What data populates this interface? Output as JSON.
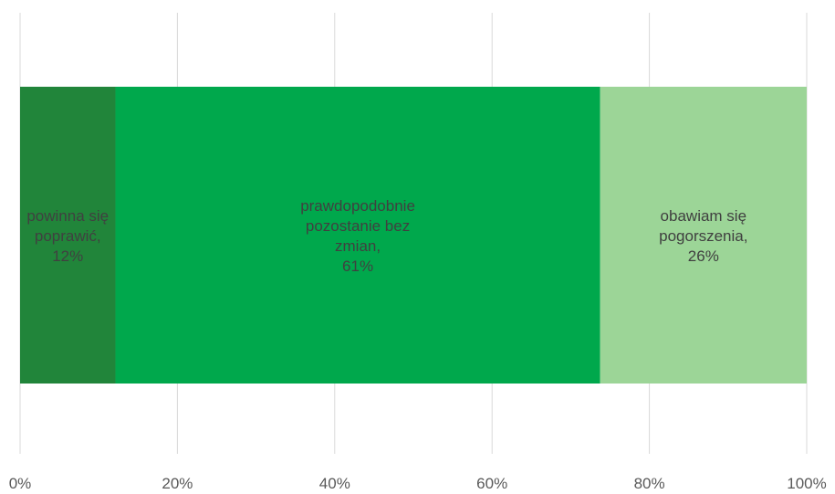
{
  "chart_data": {
    "type": "bar",
    "orientation": "horizontal",
    "stacked": true,
    "percent_stacked": true,
    "title": "",
    "xlabel": "",
    "ylabel": "",
    "xlim": [
      0,
      100
    ],
    "x_ticks": [
      "0%",
      "20%",
      "40%",
      "60%",
      "80%",
      "100%"
    ],
    "grid": "vertical",
    "legend": "none",
    "series": [
      {
        "name": "powinna się poprawić",
        "value": 12,
        "color": "#21853a",
        "label_lines": [
          "powinna się",
          "poprawić,",
          "12%"
        ]
      },
      {
        "name": "prawdopodobnie pozostanie bez zmian",
        "value": 61,
        "color": "#00a84c",
        "label_lines": [
          "prawdopodobnie",
          "pozostanie bez",
          "zmian,",
          "61%"
        ]
      },
      {
        "name": "obawiam się pogorszenia",
        "value": 26,
        "color": "#9cd597",
        "label_lines": [
          "obawiam się",
          "pogorszenia,",
          "26%"
        ]
      }
    ]
  }
}
